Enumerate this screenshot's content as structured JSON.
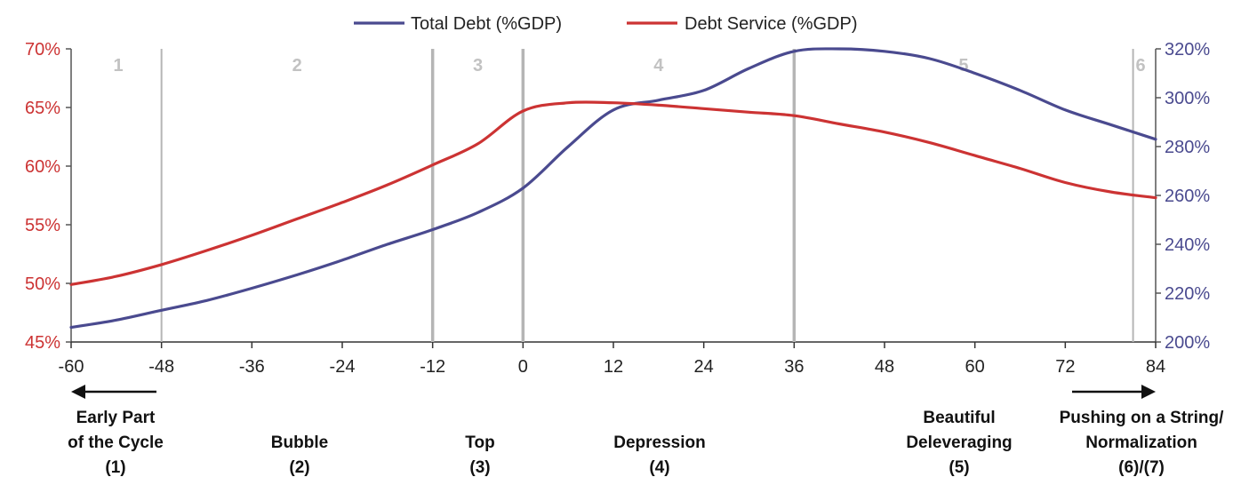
{
  "chart_data": {
    "type": "line",
    "x_ticks": [
      -60,
      -48,
      -36,
      -24,
      -12,
      0,
      12,
      24,
      36,
      48,
      60,
      72,
      84
    ],
    "xlim": [
      -60,
      84
    ],
    "left_axis": {
      "ticks": [
        "45%",
        "50%",
        "55%",
        "60%",
        "65%",
        "70%"
      ],
      "ylim": [
        45,
        70
      ],
      "color": "#cc3333"
    },
    "right_axis": {
      "ticks": [
        "200%",
        "220%",
        "240%",
        "260%",
        "280%",
        "300%",
        "320%"
      ],
      "ylim": [
        200,
        320
      ],
      "color": "#4a4a8f"
    },
    "legend": {
      "placement": "top-center"
    },
    "series": [
      {
        "name": "Total Debt (%GDP)",
        "axis": "right",
        "color": "#4a4a8f",
        "x": [
          -60,
          -54,
          -48,
          -42,
          -36,
          -30,
          -24,
          -18,
          -12,
          -6,
          0,
          6,
          12,
          18,
          24,
          30,
          36,
          42,
          48,
          54,
          60,
          66,
          72,
          78,
          84
        ],
        "values": [
          206,
          209,
          213,
          217,
          222,
          227.5,
          233.5,
          240,
          246,
          253,
          263,
          280,
          295,
          299,
          303,
          312,
          319,
          320,
          319,
          316,
          310,
          303,
          295,
          289,
          283
        ]
      },
      {
        "name": "Debt Service (%GDP)",
        "axis": "left",
        "color": "#cc3333",
        "x": [
          -60,
          -54,
          -48,
          -42,
          -36,
          -30,
          -24,
          -18,
          -12,
          -6,
          0,
          6,
          12,
          18,
          24,
          30,
          36,
          42,
          48,
          54,
          60,
          66,
          72,
          78,
          84
        ],
        "values": [
          49.9,
          50.6,
          51.6,
          52.8,
          54.1,
          55.5,
          56.9,
          58.4,
          60.1,
          61.9,
          64.7,
          65.4,
          65.4,
          65.2,
          64.9,
          64.6,
          64.3,
          63.6,
          62.9,
          62.0,
          60.9,
          59.8,
          58.6,
          57.8,
          57.3
        ]
      }
    ],
    "phase_boundaries": [
      -48,
      -12,
      0,
      36,
      81
    ],
    "phases": [
      {
        "num": "1",
        "x": -60
      },
      {
        "num": "2",
        "x": -30
      },
      {
        "num": "3",
        "x": -6
      },
      {
        "num": "4",
        "x": 18
      },
      {
        "num": "5",
        "x": 58.5
      },
      {
        "num": "6",
        "x": 82.5
      }
    ],
    "phase_labels": [
      {
        "lines": [
          "Early Part",
          "of the Cycle",
          "(1)"
        ],
        "x": -60
      },
      {
        "lines": [
          "Bubble",
          "(2)"
        ],
        "x": -35
      },
      {
        "lines": [
          "Top",
          "(3)"
        ],
        "x": -5
      },
      {
        "lines": [
          "Depression",
          "(4)"
        ],
        "x": 15
      },
      {
        "lines": [
          "Beautiful",
          "Deleveraging",
          "(5)"
        ],
        "x": 57
      },
      {
        "lines": [
          "Pushing on a String/",
          "Normalization",
          "(6)/(7)"
        ],
        "x": 76.5
      }
    ],
    "arrows": [
      {
        "direction": "left",
        "from": -48,
        "to": -61
      },
      {
        "direction": "right",
        "from": 71,
        "to": 84
      }
    ]
  }
}
